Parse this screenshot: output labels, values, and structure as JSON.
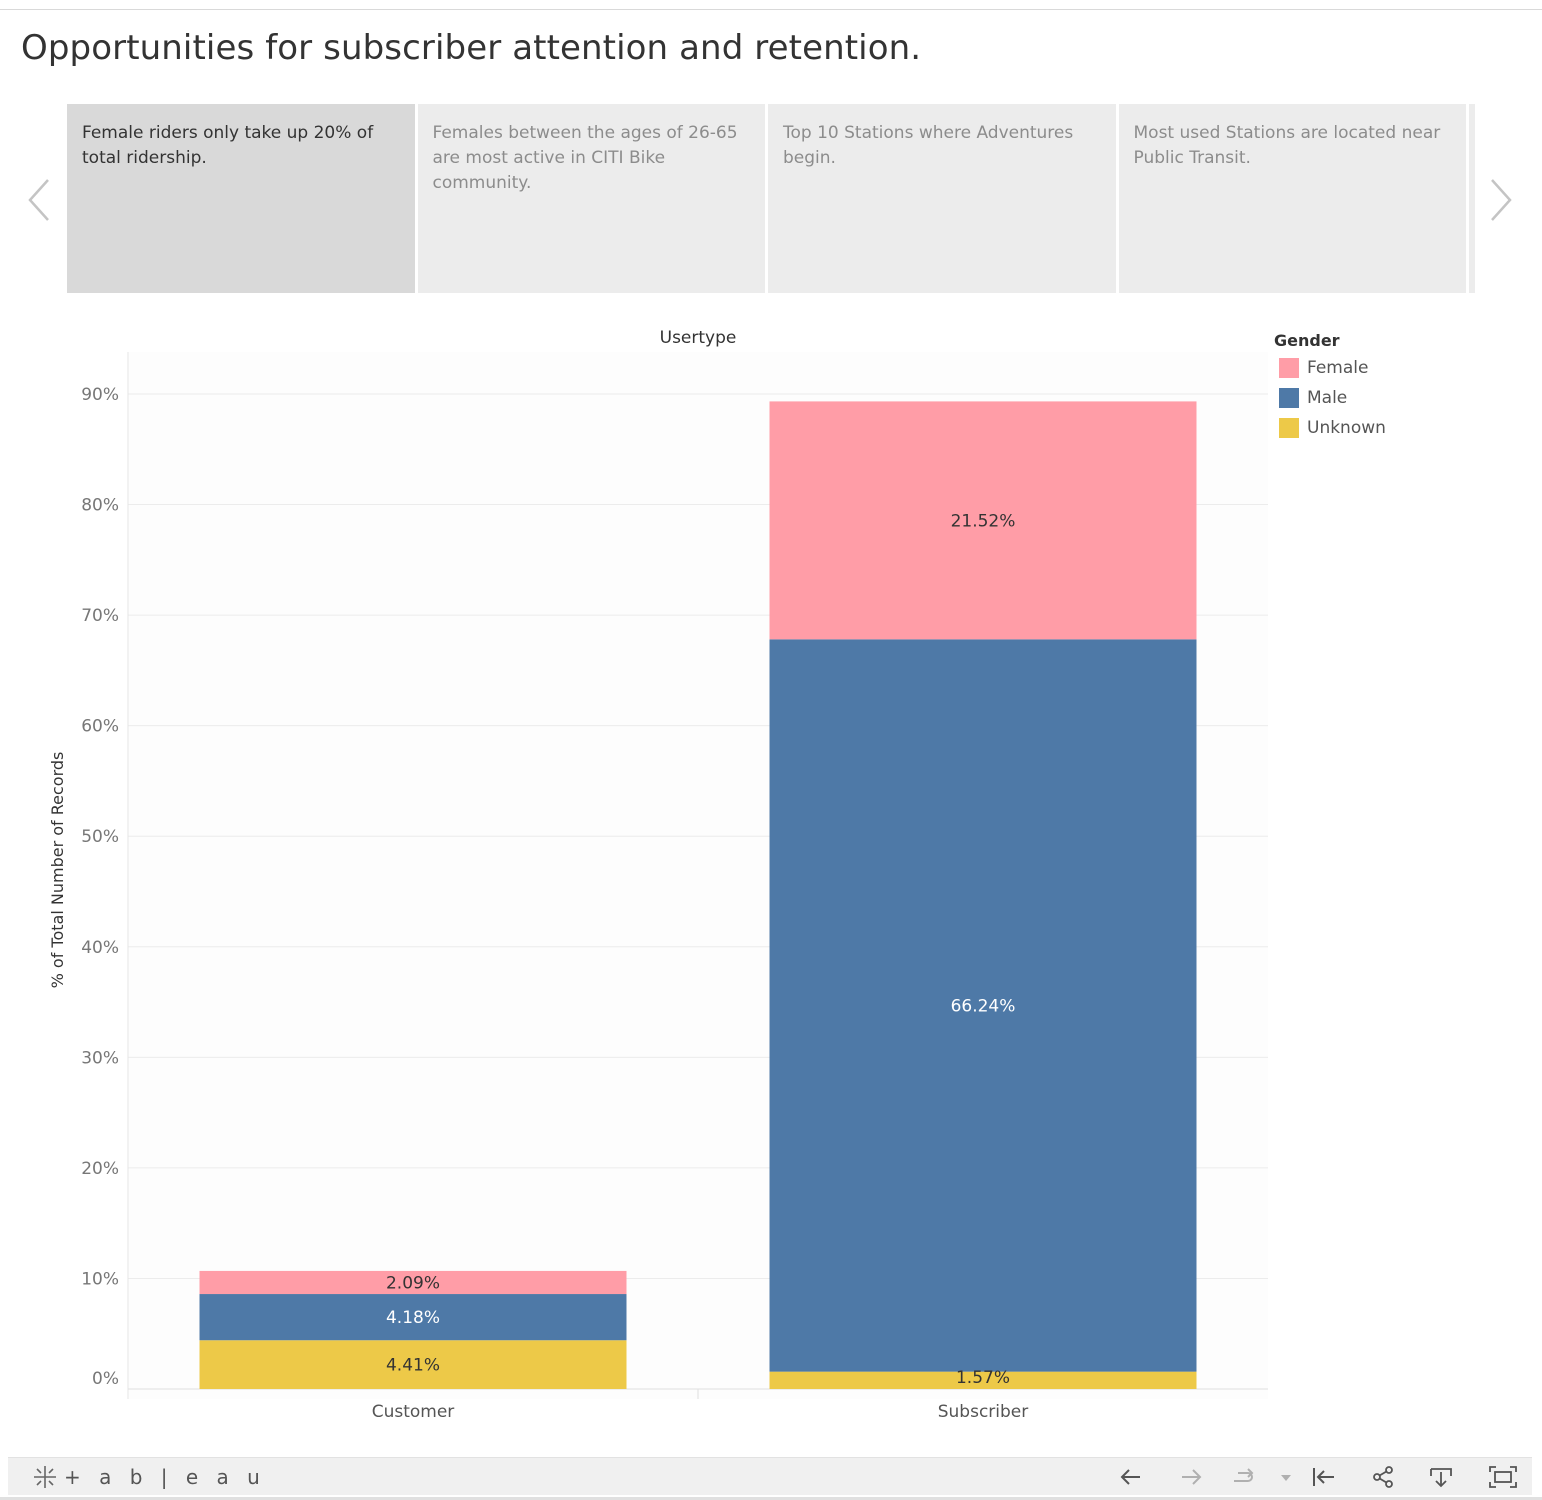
{
  "story": {
    "title": "Opportunities for subscriber attention and retention.",
    "points": [
      {
        "text": "Female riders only take up 20% of total ridership.",
        "active": true
      },
      {
        "text": "Females between the ages of 26-65 are most active in CITI Bike community.",
        "active": false
      },
      {
        "text": "Top 10 Stations where Adventures begin.",
        "active": false
      },
      {
        "text": "Most used Stations are located near Public Transit.",
        "active": false
      }
    ]
  },
  "legend": {
    "title": "Gender",
    "items": [
      {
        "label": "Female",
        "color": "#ff9da7"
      },
      {
        "label": "Male",
        "color": "#4e79a7"
      },
      {
        "label": "Unknown",
        "color": "#edc948"
      }
    ]
  },
  "chart_data": {
    "type": "bar",
    "stacked": true,
    "title": "Usertype",
    "xlabel": "",
    "ylabel": "% of Total Number of Records",
    "categories": [
      "Customer",
      "Subscriber"
    ],
    "series": [
      {
        "name": "Unknown",
        "color": "#edc948",
        "values": [
          4.41,
          1.57
        ],
        "labels": [
          "4.41%",
          "1.57%"
        ]
      },
      {
        "name": "Male",
        "color": "#4e79a7",
        "values": [
          4.18,
          66.24
        ],
        "labels": [
          "4.18%",
          "66.24%"
        ]
      },
      {
        "name": "Female",
        "color": "#ff9da7",
        "values": [
          2.09,
          21.52
        ],
        "labels": [
          "2.09%",
          "21.52%"
        ]
      }
    ],
    "yticks": [
      0,
      10,
      20,
      30,
      40,
      50,
      60,
      70,
      80,
      90
    ],
    "ytick_labels": [
      "0%",
      "10%",
      "20%",
      "30%",
      "40%",
      "50%",
      "60%",
      "70%",
      "80%",
      "90%"
    ],
    "ylim": [
      0,
      92
    ],
    "grid": true,
    "legend_position": "right"
  },
  "toolbar": {
    "logo_text": "+ a b | e a u",
    "buttons": [
      "undo-icon",
      "redo-icon",
      "revert-icon",
      "dropdown-icon",
      "reset-icon",
      "share-icon",
      "download-icon",
      "fullscreen-icon"
    ]
  }
}
